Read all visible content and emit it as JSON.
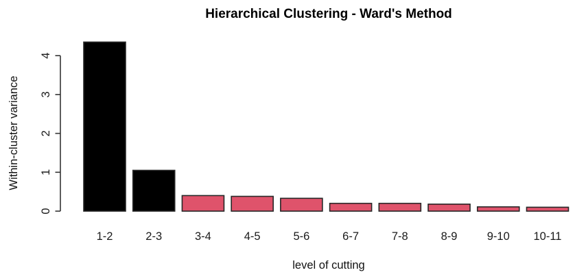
{
  "chart_data": {
    "type": "bar",
    "title": "Hierarchical Clustering - Ward's Method",
    "xlabel": "level of cutting",
    "ylabel": "Within-cluster variance",
    "categories": [
      "1-2",
      "2-3",
      "3-4",
      "4-5",
      "5-6",
      "6-7",
      "7-8",
      "8-9",
      "9-10",
      "10-11"
    ],
    "values": [
      4.35,
      1.05,
      0.4,
      0.38,
      0.33,
      0.2,
      0.2,
      0.18,
      0.11,
      0.1
    ],
    "bar_colors": [
      "#000000",
      "#000000",
      "#DF536B",
      "#DF536B",
      "#DF536B",
      "#DF536B",
      "#DF536B",
      "#DF536B",
      "#DF536B",
      "#DF536B"
    ],
    "bar_border_color": "#262626",
    "y_ticks": [
      0,
      1,
      2,
      3,
      4
    ],
    "ylim": [
      0,
      4.35
    ],
    "grid": false,
    "legend": null,
    "background": "#ffffff"
  },
  "colors": {
    "background": "#ffffff",
    "black_bar": "#000000",
    "accent_bar": "#DF536B",
    "axis": "#333333",
    "text": "#111111"
  }
}
